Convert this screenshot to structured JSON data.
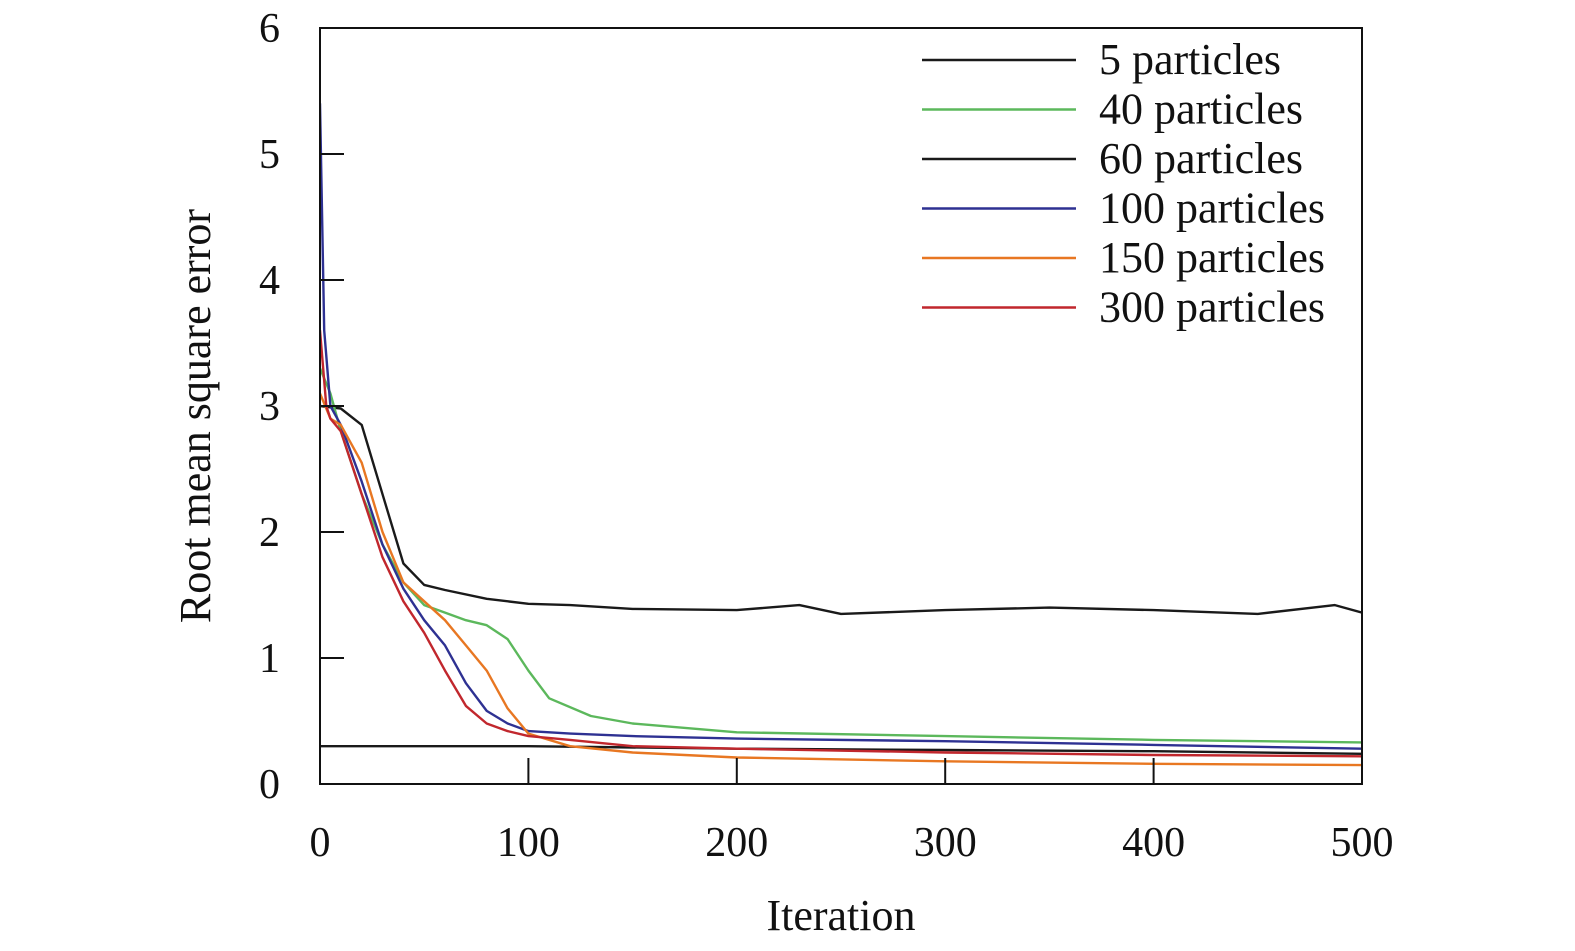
{
  "chart_data": {
    "type": "line",
    "title": "",
    "xlabel": "Iteration",
    "ylabel": "Root mean square error",
    "xlim": [
      0,
      500
    ],
    "ylim": [
      0,
      6
    ],
    "xticks": [
      "0",
      "100",
      "200",
      "300",
      "400",
      "500"
    ],
    "yticks": [
      "0",
      "1",
      "2",
      "3",
      "4",
      "5",
      "6"
    ],
    "grid": false,
    "legend_position": "top-right",
    "series": [
      {
        "name": "5 particles",
        "color": "#1a1a1a",
        "x": [
          0,
          10,
          20,
          30,
          40,
          50,
          60,
          80,
          100,
          120,
          150,
          200,
          230,
          250,
          300,
          350,
          400,
          450,
          487,
          500
        ],
        "y": [
          3.0,
          2.98,
          2.85,
          2.3,
          1.75,
          1.58,
          1.54,
          1.47,
          1.43,
          1.42,
          1.39,
          1.38,
          1.42,
          1.35,
          1.38,
          1.4,
          1.38,
          1.35,
          1.42,
          1.36
        ]
      },
      {
        "name": "40 particles",
        "color": "#5cb85c",
        "x": [
          0,
          5,
          10,
          20,
          30,
          40,
          50,
          60,
          70,
          80,
          90,
          100,
          110,
          130,
          150,
          200,
          300,
          400,
          500
        ],
        "y": [
          3.3,
          3.1,
          2.8,
          2.3,
          1.9,
          1.6,
          1.42,
          1.36,
          1.3,
          1.26,
          1.15,
          0.9,
          0.68,
          0.54,
          0.48,
          0.41,
          0.38,
          0.35,
          0.33
        ]
      },
      {
        "name": "60 particles",
        "color": "#1a1a1a",
        "x": [
          0,
          100,
          200,
          300,
          400,
          500
        ],
        "y": [
          0.3,
          0.3,
          0.28,
          0.27,
          0.26,
          0.24
        ]
      },
      {
        "name": "100 particles",
        "color": "#2e3192",
        "x": [
          0,
          2,
          5,
          10,
          20,
          30,
          40,
          50,
          60,
          70,
          80,
          90,
          100,
          120,
          150,
          200,
          300,
          400,
          500
        ],
        "y": [
          5.4,
          3.6,
          3.0,
          2.85,
          2.4,
          1.9,
          1.55,
          1.3,
          1.1,
          0.8,
          0.58,
          0.48,
          0.42,
          0.4,
          0.38,
          0.36,
          0.34,
          0.31,
          0.28
        ]
      },
      {
        "name": "150 particles",
        "color": "#e87722",
        "x": [
          0,
          5,
          10,
          20,
          30,
          40,
          50,
          60,
          70,
          80,
          90,
          100,
          120,
          150,
          200,
          300,
          400,
          500
        ],
        "y": [
          3.1,
          2.9,
          2.85,
          2.55,
          2.0,
          1.6,
          1.45,
          1.3,
          1.1,
          0.9,
          0.6,
          0.4,
          0.3,
          0.25,
          0.21,
          0.18,
          0.16,
          0.15
        ]
      },
      {
        "name": "300 particles",
        "color": "#c1272d",
        "x": [
          0,
          3,
          5,
          10,
          20,
          30,
          40,
          50,
          60,
          70,
          80,
          90,
          100,
          120,
          150,
          200,
          300,
          400,
          500
        ],
        "y": [
          3.6,
          3.0,
          2.9,
          2.8,
          2.3,
          1.8,
          1.45,
          1.2,
          0.9,
          0.62,
          0.48,
          0.42,
          0.38,
          0.35,
          0.3,
          0.28,
          0.25,
          0.23,
          0.22
        ]
      }
    ]
  }
}
